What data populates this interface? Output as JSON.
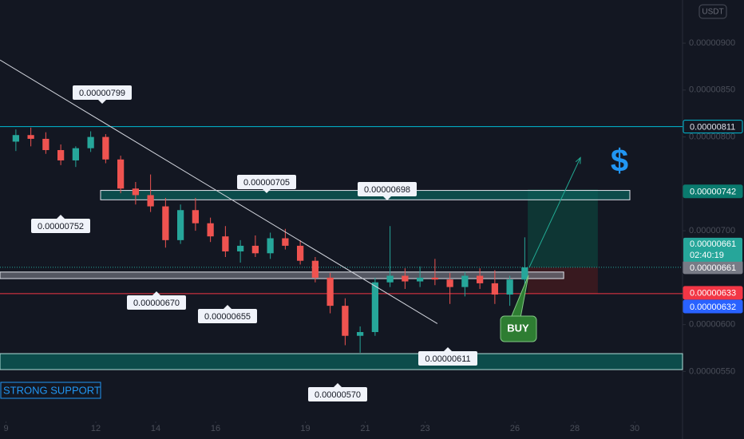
{
  "chart_data": {
    "type": "candlestick",
    "currency": "USDT",
    "x": [
      9.33,
      9.83,
      10.33,
      10.83,
      11.33,
      11.83,
      12.33,
      12.83,
      13.33,
      13.83,
      14.33,
      14.83,
      15.33,
      15.83,
      16.33,
      16.83,
      17.33,
      17.83,
      18.33,
      18.83,
      19.33,
      19.83,
      20.33,
      20.83,
      21.33,
      21.83,
      22.33,
      22.83,
      23.33,
      23.83,
      24.33,
      24.83,
      25.33,
      25.83,
      26.33
    ],
    "open": [
      7.95e-06,
      8.02e-06,
      7.98e-06,
      7.86e-06,
      7.75e-06,
      7.88e-06,
      8e-06,
      7.76e-06,
      7.45e-06,
      7.38e-06,
      7.26e-06,
      6.9e-06,
      7.22e-06,
      7.08e-06,
      6.94e-06,
      6.78e-06,
      6.84e-06,
      6.76e-06,
      6.92e-06,
      6.84e-06,
      6.68e-06,
      6.5e-06,
      6.2e-06,
      5.88e-06,
      5.92e-06,
      6.45e-06,
      6.52e-06,
      6.46e-06,
      6.5e-06,
      6.48e-06,
      6.4e-06,
      6.52e-06,
      6.44e-06,
      6.32e-06,
      6.48e-06
    ],
    "high": [
      8.08e-06,
      8.1e-06,
      8.05e-06,
      7.92e-06,
      7.9e-06,
      8.06e-06,
      8.03e-06,
      7.8e-06,
      7.52e-06,
      7.6e-06,
      7.35e-06,
      7.28e-06,
      7.35e-06,
      7.14e-06,
      7.05e-06,
      6.9e-06,
      6.95e-06,
      6.98e-06,
      7.02e-06,
      6.9e-06,
      6.72e-06,
      6.55e-06,
      6.28e-06,
      5.98e-06,
      6.5e-06,
      7.05e-06,
      6.6e-06,
      6.62e-06,
      6.7e-06,
      6.55e-06,
      6.56e-06,
      6.6e-06,
      6.58e-06,
      6.52e-06,
      6.93e-06
    ],
    "low": [
      7.85e-06,
      7.9e-06,
      7.82e-06,
      7.7e-06,
      7.68e-06,
      7.84e-06,
      7.72e-06,
      7.4e-06,
      7.28e-06,
      7.2e-06,
      6.82e-06,
      6.86e-06,
      7e-06,
      6.88e-06,
      6.72e-06,
      6.66e-06,
      6.72e-06,
      6.7e-06,
      6.8e-06,
      6.64e-06,
      6.45e-06,
      6.12e-06,
      5.78e-06,
      5.7e-06,
      5.88e-06,
      6.4e-06,
      6.38e-06,
      6.4e-06,
      6.42e-06,
      6.22e-06,
      6.3e-06,
      6.38e-06,
      6.22e-06,
      6.2e-06,
      6.4e-06
    ],
    "close": [
      8.02e-06,
      7.98e-06,
      7.86e-06,
      7.75e-06,
      7.88e-06,
      8e-06,
      7.76e-06,
      7.45e-06,
      7.38e-06,
      7.26e-06,
      6.9e-06,
      7.22e-06,
      7.08e-06,
      6.94e-06,
      6.78e-06,
      6.84e-06,
      6.76e-06,
      6.92e-06,
      6.84e-06,
      6.68e-06,
      6.5e-06,
      6.2e-06,
      5.88e-06,
      5.92e-06,
      6.45e-06,
      6.52e-06,
      6.46e-06,
      6.5e-06,
      6.48e-06,
      6.4e-06,
      6.52e-06,
      6.44e-06,
      6.32e-06,
      6.48e-06,
      6.61e-06
    ],
    "up_color": "#26a69a",
    "down_color": "#ef5350",
    "xlim": [
      8.8,
      31.6
    ],
    "ylim": [
      4.78e-06,
      9.46e-06
    ],
    "xticks": [
      9,
      12,
      14,
      16,
      19,
      21,
      23,
      26,
      28,
      30
    ],
    "yticks": [
      {
        "value": 5.5e-06,
        "label": "0.00000550"
      },
      {
        "value": 6e-06,
        "label": "0.00000600"
      },
      {
        "value": 7e-06,
        "label": "0.00000700"
      },
      {
        "value": 8e-06,
        "label": "0.00000800"
      },
      {
        "value": 8.5e-06,
        "label": "0.00000850"
      },
      {
        "value": 9e-06,
        "label": "0.00000900"
      }
    ],
    "zones": [
      {
        "ylim": [
          7.33e-06,
          7.43e-06
        ],
        "xlim": [
          12.16,
          29.84
        ],
        "fill": "#0b5f5a",
        "stroke": "#e0e3eb"
      },
      {
        "ylim": [
          6.49e-06,
          6.56e-06
        ],
        "xlim": [
          8.8,
          27.63
        ],
        "fill": "#6b6e78",
        "stroke": "#e0e3eb"
      },
      {
        "ylim": [
          5.52e-06,
          5.69e-06
        ],
        "xlim": [
          8.8,
          31.6
        ],
        "fill": "#0b5f5a",
        "stroke": "#b2dfdb"
      }
    ],
    "trendline": {
      "x": [
        8.8,
        23.41
      ],
      "y": [
        8.82e-06,
        6.01e-06
      ],
      "color": "#d1d4dc"
    },
    "position": {
      "xlim": [
        26.43,
        28.77
      ],
      "entry": 6.61e-06,
      "target": 7.44e-06,
      "stop": 6.33e-06
    },
    "arrow": {
      "x": [
        26.48,
        28.19
      ],
      "y": [
        6.61e-06,
        7.78e-06
      ],
      "color": "#22ab94"
    },
    "levels": [
      {
        "value": 8.11e-06,
        "label": "0.00000811",
        "color": "#00bcd4",
        "line": true,
        "filled": false
      },
      {
        "value": 7.42e-06,
        "label": "0.00000742",
        "color": "#0a7a6e",
        "line": false,
        "filled": true
      },
      {
        "value": 6.61e-06,
        "label": "0.00000661",
        "color": "#787b86",
        "line": false,
        "filled": true
      },
      {
        "value": 6.33e-06,
        "label": "0.00000633",
        "color": "#f23645",
        "line": true,
        "filled": true
      },
      {
        "value": 6.32e-06,
        "label": "0.00000632",
        "color": "#2962ff",
        "line": false,
        "filled": true
      }
    ],
    "last_price": {
      "value": 6.61e-06,
      "label": "0.00000661",
      "countdown": "02:40:19",
      "color": "#26a69a"
    },
    "annotations": [
      "0.00000799",
      "0.00000752",
      "0.00000705",
      "0.00000698",
      "0.00000670",
      "0.00000655",
      "0.00000611",
      "0.00000570"
    ],
    "buy_label": "BUY",
    "support_label": "STRONG SUPPORT",
    "symbol": "$"
  }
}
